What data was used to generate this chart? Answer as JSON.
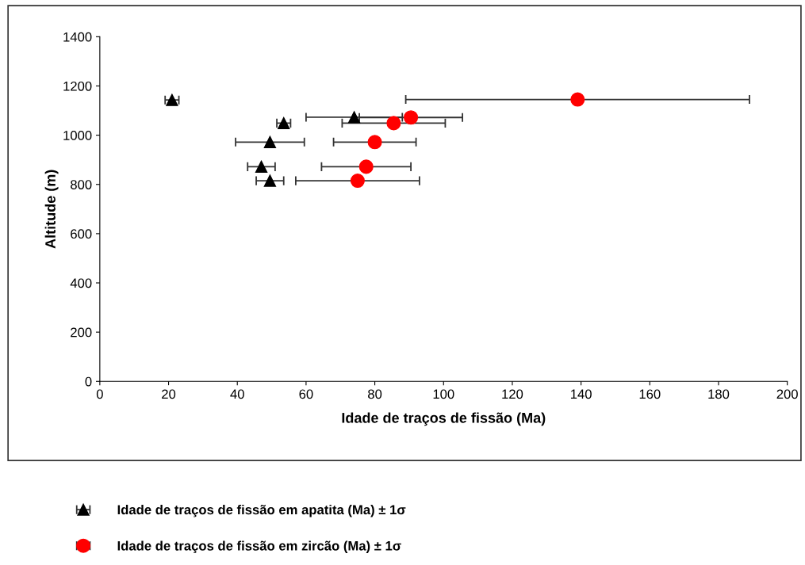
{
  "chart_data": {
    "type": "scatter",
    "xlabel": "Idade de traços de fissão (Ma)",
    "ylabel": "Altitude (m)",
    "xlim": [
      0,
      200
    ],
    "xticks": [
      0,
      20,
      40,
      60,
      80,
      100,
      120,
      140,
      160,
      180,
      200
    ],
    "ylim": [
      0,
      1400
    ],
    "yticks": [
      0,
      200,
      400,
      600,
      800,
      1000,
      1200,
      1400
    ],
    "grid": false,
    "legend": "bottom",
    "series": [
      {
        "name": "Idade de traços de fissão em apatita (Ma) ± 1σ",
        "color": "#000000",
        "marker": "triangle",
        "x": [
          21,
          74,
          53.5,
          49.5,
          47,
          49.5
        ],
        "values": [
          1143,
          1073,
          1049,
          972,
          872,
          815
        ],
        "xerrors": [
          2,
          14,
          2,
          10,
          4,
          4
        ]
      },
      {
        "name": "Idade de traços de fissão em zircão (Ma) ± 1σ",
        "color": "#ff0000",
        "marker": "circle",
        "x": [
          139,
          90.5,
          85.5,
          80,
          77.5,
          75
        ],
        "values": [
          1145,
          1072,
          1049,
          972,
          872,
          815
        ],
        "xerrors": [
          50,
          15,
          15,
          12,
          13,
          18
        ]
      }
    ]
  }
}
